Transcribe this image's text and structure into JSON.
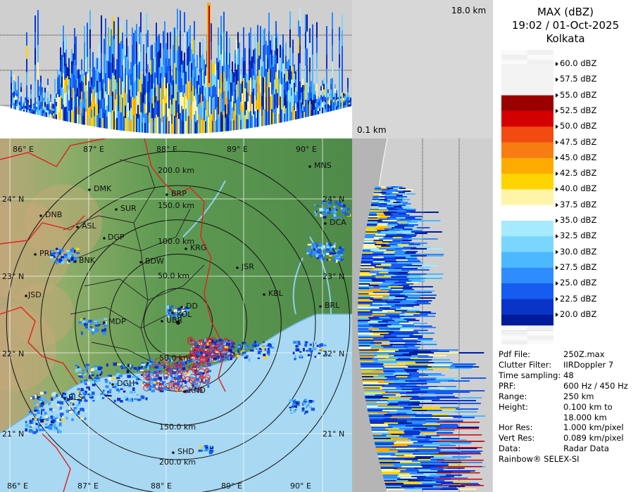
{
  "panel": {
    "title": "MAX (dBZ)",
    "datetime": "19:02 / 01-Oct-2025",
    "location": "Kolkata",
    "scale": [
      {
        "label": "60.0 dBZ",
        "color": ""
      },
      {
        "label": "57.5 dBZ",
        "color": ""
      },
      {
        "label": "55.0 dBZ",
        "color": "#9a0000"
      },
      {
        "label": "52.5 dBZ",
        "color": "#d40000"
      },
      {
        "label": "50.0 dBZ",
        "color": "#f24b12"
      },
      {
        "label": "47.5 dBZ",
        "color": "#f77d12"
      },
      {
        "label": "45.0 dBZ",
        "color": "#ffab00"
      },
      {
        "label": "42.5 dBZ",
        "color": "#ffd400"
      },
      {
        "label": "40.0 dBZ",
        "color": "#fff4a8"
      },
      {
        "label": "37.5 dBZ",
        "color": "#ffffff"
      },
      {
        "label": "35.0 dBZ",
        "color": "#a6eaff"
      },
      {
        "label": "32.5 dBZ",
        "color": "#7ad6ff"
      },
      {
        "label": "30.0 dBZ",
        "color": "#4cb8ff"
      },
      {
        "label": "27.5 dBZ",
        "color": "#2f8cff"
      },
      {
        "label": "25.0 dBZ",
        "color": "#165cf0"
      },
      {
        "label": "22.5 dBZ",
        "color": "#0a33c8"
      },
      {
        "label": "20.0 dBZ",
        "color": "#001c9a"
      }
    ],
    "info": [
      {
        "key": "Pdf File:",
        "value": "250Z.max"
      },
      {
        "key": "Clutter Filter:",
        "value": "IIRDoppler 7"
      },
      {
        "key": "Time sampling:",
        "value": "48"
      },
      {
        "key": "PRF:",
        "value": "600 Hz / 450 Hz"
      },
      {
        "key": "Range:",
        "value": "250 km"
      },
      {
        "key": "Height:",
        "value": "0.100 km to"
      },
      {
        "key": "",
        "value": "18.000 km"
      },
      {
        "key": "Hor Res:",
        "value": "1.000 km/pixel"
      },
      {
        "key": "Vert Res:",
        "value": "0.089 km/pixel"
      },
      {
        "key": "Data:",
        "value": "Radar Data"
      }
    ],
    "footer": "Rainbow® SELEX-SI"
  },
  "heights": {
    "top": "18.0 km",
    "bottom": "0.1 km"
  },
  "map": {
    "lon_labels_top": [
      "86° E",
      "87° E",
      "88° E",
      "89° E",
      "90° E"
    ],
    "lon_labels_bottom": [
      "86° E",
      "87° E",
      "88° E",
      "89° E",
      "90° E"
    ],
    "lat_labels_left": [
      "24° N",
      "23° N",
      "22° N",
      "21° N"
    ],
    "lat_labels_right": [
      "24° N",
      "23° N",
      "22° N",
      "21° N"
    ],
    "range_labels_north": [
      "200.0 km",
      "150.0 km",
      "100.0 km",
      "50.0 km"
    ],
    "range_labels_south": [
      "50.0 km",
      "150.0 km",
      "200.0 km"
    ],
    "stations": [
      {
        "code": "MNS"
      },
      {
        "code": "DMK"
      },
      {
        "code": "BRP"
      },
      {
        "code": "SUR"
      },
      {
        "code": "DNB"
      },
      {
        "code": "ASL"
      },
      {
        "code": "DGP"
      },
      {
        "code": "KRG"
      },
      {
        "code": "DCA"
      },
      {
        "code": "PRL"
      },
      {
        "code": "BNK"
      },
      {
        "code": "BDW"
      },
      {
        "code": "JSR"
      },
      {
        "code": "KBL"
      },
      {
        "code": "JSD"
      },
      {
        "code": "DD"
      },
      {
        "code": "KOL"
      },
      {
        "code": "BRL"
      },
      {
        "code": "MDP"
      },
      {
        "code": "UBR"
      },
      {
        "code": "KND"
      },
      {
        "code": "DGH"
      },
      {
        "code": "BLS"
      },
      {
        "code": "SHD"
      }
    ]
  }
}
